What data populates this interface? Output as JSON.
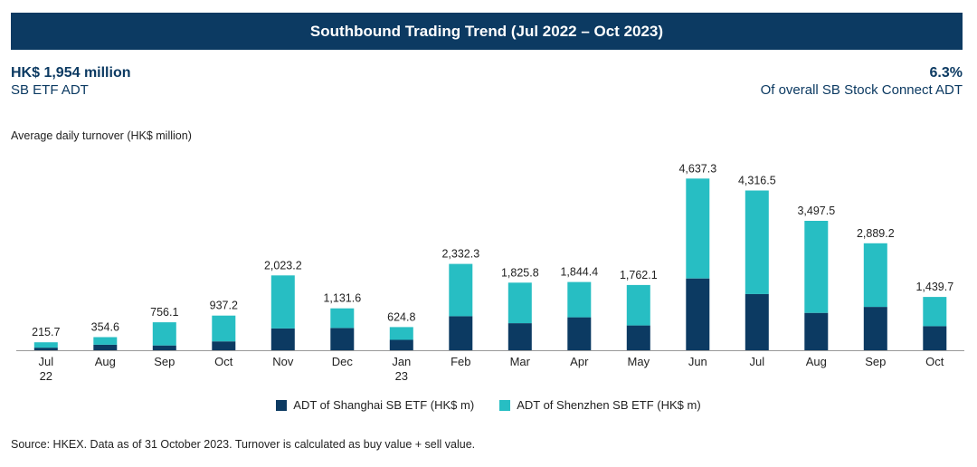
{
  "header": {
    "title": "Southbound Trading Trend  (Jul 2022 – Oct 2023)"
  },
  "kpi_left": {
    "value": "HK$ 1,954 million",
    "label": "SB ETF ADT"
  },
  "kpi_right": {
    "value": "6.3%",
    "label": "Of overall SB Stock Connect ADT"
  },
  "footer": {
    "source": "Source: HKEX. Data as of 31 October 2023. Turnover is calculated as buy value + sell value."
  },
  "colors": {
    "banner": "#0c3a62",
    "shanghai": "#0c3a62",
    "shenzhen": "#27bec3"
  },
  "chart_data": {
    "type": "bar",
    "stacked": true,
    "ylabel": "Average daily turnover (HK$ million)",
    "categories": [
      [
        "Jul",
        "22"
      ],
      [
        "Aug"
      ],
      [
        "Sep"
      ],
      [
        "Oct"
      ],
      [
        "Nov"
      ],
      [
        "Dec"
      ],
      [
        "Jan",
        "23"
      ],
      [
        "Feb"
      ],
      [
        "Mar"
      ],
      [
        "Apr"
      ],
      [
        "May"
      ],
      [
        "Jun"
      ],
      [
        "Jul"
      ],
      [
        "Aug"
      ],
      [
        "Sep"
      ],
      [
        "Oct"
      ]
    ],
    "series": [
      {
        "name": "ADT of Shanghai SB ETF (HK$ m)",
        "values": [
          70,
          150,
          130,
          240,
          590,
          600,
          280,
          920,
          730,
          890,
          670,
          1940,
          1520,
          1010,
          1170,
          650
        ]
      },
      {
        "name": "ADT of Shenzhen SB ETF (HK$ m)",
        "values": [
          145.7,
          204.6,
          626.1,
          697.2,
          1433.2,
          531.6,
          344.8,
          1412.3,
          1095.8,
          954.4,
          1092.1,
          2697.3,
          2796.5,
          2487.5,
          1719.2,
          789.7
        ]
      }
    ],
    "totals": [
      215.7,
      354.6,
      756.1,
      937.2,
      2023.2,
      1131.6,
      624.8,
      2332.3,
      1825.8,
      1844.4,
      1762.1,
      4637.3,
      4316.5,
      3497.5,
      2889.2,
      1439.7
    ],
    "total_labels": [
      "215.7",
      "354.6",
      "756.1",
      "937.2",
      "2,023.2",
      "1,131.6",
      "624.8",
      "2,332.3",
      "1,825.8",
      "1,844.4",
      "1,762.1",
      "4,637.3",
      "4,316.5",
      "3,497.5",
      "2,889.2",
      "1,439.7"
    ],
    "legend_position": "bottom",
    "grid": false
  }
}
